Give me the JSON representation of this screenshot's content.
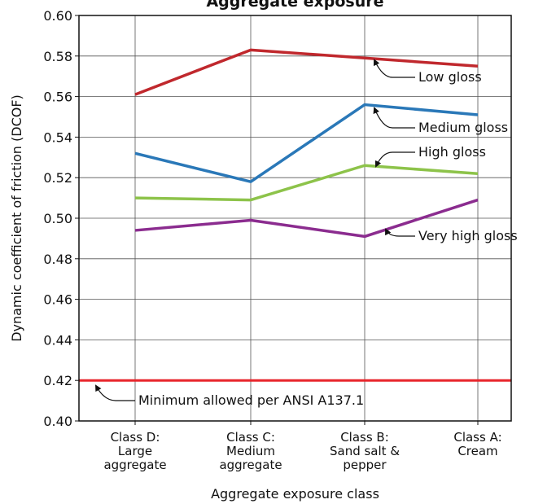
{
  "chart_data": {
    "type": "line",
    "title": "Aggregate exposure",
    "xlabel": "Aggregate exposure class",
    "ylabel": "Dynamic coefficient of friction (DCOF)",
    "ylim": [
      0.4,
      0.6
    ],
    "yticks": [
      "0.40",
      "0.42",
      "0.44",
      "0.46",
      "0.48",
      "0.50",
      "0.52",
      "0.54",
      "0.56",
      "0.58",
      "0.60"
    ],
    "categories": [
      [
        "Class D:",
        "Large",
        "aggregate"
      ],
      [
        "Class C:",
        "Medium",
        "aggregate"
      ],
      [
        "Class B:",
        "Sand salt &",
        "pepper"
      ],
      [
        "Class A:",
        "Cream"
      ]
    ],
    "grid": true,
    "series": [
      {
        "name": "Low gloss",
        "color": "#c0282d",
        "values": [
          0.561,
          0.583,
          0.579,
          0.575
        ]
      },
      {
        "name": "Medium gloss",
        "color": "#2a78b8",
        "values": [
          0.532,
          0.518,
          0.556,
          0.551
        ]
      },
      {
        "name": "High gloss",
        "color": "#8dc34a",
        "values": [
          0.51,
          0.509,
          0.526,
          0.522
        ]
      },
      {
        "name": "Very high gloss",
        "color": "#8b2c8f",
        "values": [
          0.494,
          0.499,
          0.491,
          0.509
        ]
      }
    ],
    "reference_line": {
      "name": "Minimum allowed per ANSI A137.1",
      "value": 0.42,
      "color": "#e8252b"
    }
  }
}
